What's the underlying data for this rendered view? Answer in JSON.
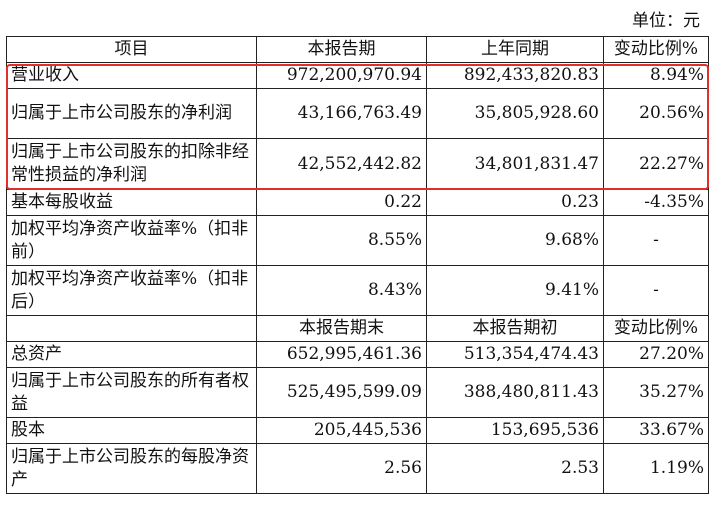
{
  "unit_label": "单位：元",
  "header1": {
    "c0": "项目",
    "c1": "本报告期",
    "c2": "上年同期",
    "c3": "变动比例%"
  },
  "rows1": [
    {
      "label": "营业收入",
      "v1": "972,200,970.94",
      "v2": "892,433,820.83",
      "v3": "8.94%"
    },
    {
      "label": "归属于上市公司股东的净利润",
      "v1": "43,166,763.49",
      "v2": "35,805,928.60",
      "v3": "20.56%"
    },
    {
      "label": "归属于上市公司股东的扣除非经常性损益的净利润",
      "v1": "42,552,442.82",
      "v2": "34,801,831.47",
      "v3": "22.27%"
    },
    {
      "label": "基本每股收益",
      "v1": "0.22",
      "v2": "0.23",
      "v3": "-4.35%"
    },
    {
      "label": "加权平均净资产收益率%（扣非前）",
      "v1": "8.55%",
      "v2": "9.68%",
      "v3": "-"
    },
    {
      "label": "加权平均净资产收益率%（扣非后）",
      "v1": "8.43%",
      "v2": "9.41%",
      "v3": "-"
    }
  ],
  "header2": {
    "c1": "本报告期末",
    "c2": "本报告期初",
    "c3": "变动比例%"
  },
  "rows2": [
    {
      "label": "总资产",
      "v1": "652,995,461.36",
      "v2": "513,354,474.43",
      "v3": "27.20%"
    },
    {
      "label": "归属于上市公司股东的所有者权益",
      "v1": "525,495,599.09",
      "v2": "388,480,811.43",
      "v3": "35.27%"
    },
    {
      "label": "股本",
      "v1": "205,445,536",
      "v2": "153,695,536",
      "v3": "33.67%"
    },
    {
      "label": "归属于上市公司股东的每股净资产",
      "v1": "2.56",
      "v2": "2.53",
      "v3": "1.19%"
    }
  ],
  "highlight_color": "#e0302a"
}
